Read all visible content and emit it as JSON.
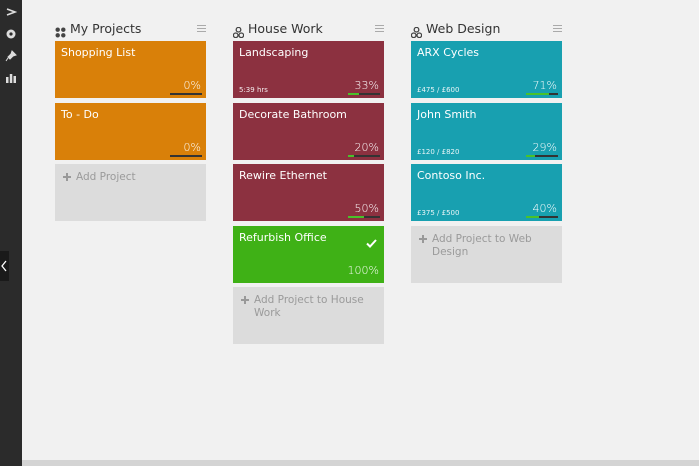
{
  "columns": [
    {
      "title": "My Projects",
      "add_label": "Add Project",
      "cards": [
        {
          "title": "Shopping List",
          "color": "#d98009",
          "progress": {
            "value": 0,
            "label": "0%"
          }
        },
        {
          "title": "To - Do",
          "color": "#d98009",
          "progress": {
            "value": 0,
            "label": "0%"
          }
        }
      ]
    },
    {
      "title": "House Work",
      "add_label": "Add Project to House Work",
      "cards": [
        {
          "title": "Landscaping",
          "subtitle": "5:39 hrs",
          "color": "#8c3140",
          "progress": {
            "value": 33,
            "label": "33%"
          }
        },
        {
          "title": "Decorate Bathroom",
          "color": "#8c3140",
          "progress": {
            "value": 20,
            "label": "20%"
          }
        },
        {
          "title": "Rewire Ethernet",
          "color": "#8c3140",
          "progress": {
            "value": 50,
            "label": "50%"
          }
        },
        {
          "title": "Refurbish Office",
          "color": "#3fb116",
          "complete": true,
          "progress": {
            "value": 100,
            "label": "100%"
          }
        }
      ]
    },
    {
      "title": "Web Design",
      "add_label": "Add Project to Web Design",
      "cards": [
        {
          "title": "ARX Cycles",
          "subtitle": "£475 / £600",
          "color": "#18a0b0",
          "progress": {
            "value": 71,
            "label": "71%"
          }
        },
        {
          "title": "John Smith",
          "subtitle": "£120 / £820",
          "color": "#18a0b0",
          "progress": {
            "value": 29,
            "label": "29%"
          }
        },
        {
          "title": "Contoso Inc.",
          "subtitle": "£375 / £500",
          "color": "#18a0b0",
          "progress": {
            "value": 40,
            "label": "40%"
          }
        }
      ]
    }
  ]
}
